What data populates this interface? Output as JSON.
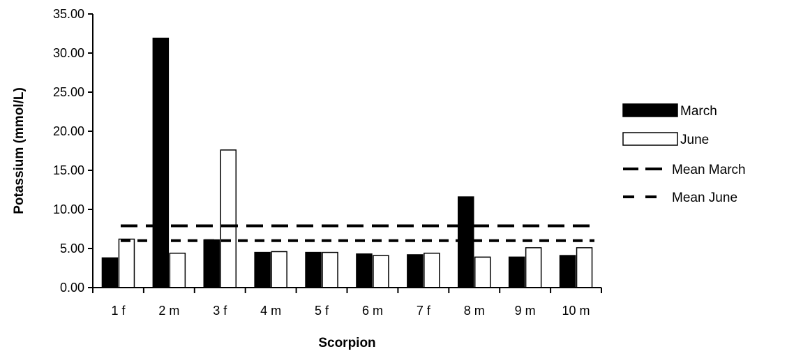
{
  "chart_data": {
    "type": "bar",
    "xlabel": "Scorpion",
    "ylabel": "Potassium (mmol/L)",
    "ylim": [
      0,
      35
    ],
    "y_ticks": [
      "0.00",
      "5.00",
      "10.00",
      "15.00",
      "20.00",
      "25.00",
      "30.00",
      "35.00"
    ],
    "categories": [
      "1 f",
      "2 m",
      "3 f",
      "4 m",
      "5 f",
      "6 m",
      "7 f",
      "8 m",
      "9 m",
      "10 m"
    ],
    "series": [
      {
        "name": "March",
        "color": "#000000",
        "values": [
          3.8,
          31.9,
          6.1,
          4.5,
          4.5,
          4.3,
          4.2,
          11.6,
          3.9,
          4.1
        ]
      },
      {
        "name": "June",
        "color": "#ffffff",
        "values": [
          6.2,
          4.4,
          17.6,
          4.6,
          4.5,
          4.1,
          4.4,
          3.9,
          5.1,
          5.1
        ]
      }
    ],
    "reference_lines": [
      {
        "name": "Mean March",
        "value": 7.9,
        "style": "long-dash"
      },
      {
        "name": "Mean June",
        "value": 6.0,
        "style": "short-dash"
      }
    ],
    "legend_position": "right",
    "grid": false
  }
}
